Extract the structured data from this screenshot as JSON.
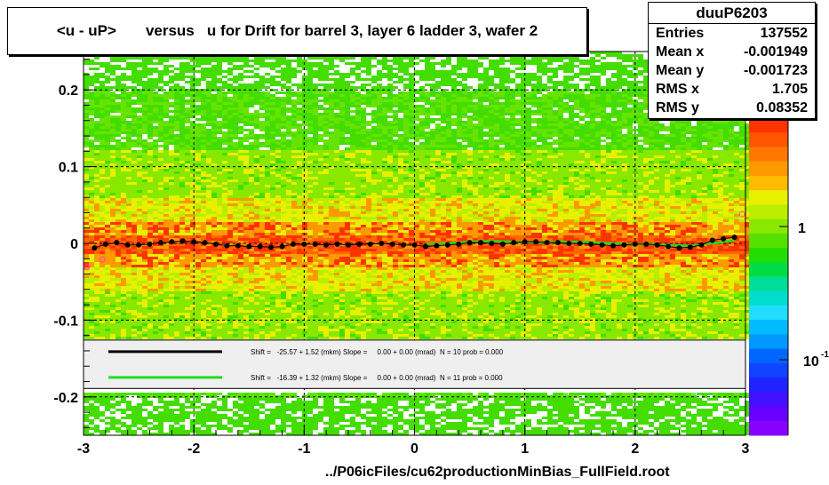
{
  "title": "<u - uP>       versus   u for Drift for barrel 3, layer 6 ladder 3, wafer 2",
  "stats": {
    "name": "duuP6203",
    "rows": [
      {
        "label": "Entries",
        "value": "137552"
      },
      {
        "label": "Mean x",
        "value": "-0.001949"
      },
      {
        "label": "Mean y",
        "value": "-0.001723"
      },
      {
        "label": "RMS x",
        "value": "1.705"
      },
      {
        "label": "RMS y",
        "value": "0.08352"
      }
    ]
  },
  "footer": "../P06icFiles/cu62productionMinBias_FullField.root",
  "colorbar": {
    "labels": [
      "1",
      "10"
    ],
    "label_superscript": "-1"
  },
  "legend": {
    "entries": [
      {
        "color": "#000000",
        "text": "Shift =   -25.57 + 1.52 (mkm) Slope =     0.00 + 0.00 (mrad)  N = 10 prob = 0.000"
      },
      {
        "color": "#22dd22",
        "text": "Shift =   -16.39 + 1.32 (mkm) Slope =     0.00 + 0.00 (mrad)  N = 11 prob = 0.000"
      }
    ]
  },
  "chart_data": {
    "type": "heatmap",
    "xlim": [
      -3,
      3
    ],
    "ylim": [
      -0.25,
      0.25
    ],
    "x_ticks": [
      -3,
      -2,
      -1,
      0,
      1,
      2,
      3
    ],
    "y_ticks": [
      -0.2,
      -0.1,
      0,
      0.1,
      0.2
    ],
    "grid": true,
    "series": [
      {
        "marker": "black-dots",
        "x": [
          -2.9,
          -2.8,
          -2.7,
          -2.6,
          -2.5,
          -2.4,
          -2.3,
          -2.2,
          -2.1,
          -2.0,
          -1.9,
          -1.8,
          -1.7,
          -1.6,
          -1.5,
          -1.4,
          -1.3,
          -1.2,
          -1.1,
          -1.0,
          -0.9,
          -0.8,
          -0.7,
          -0.6,
          -0.5,
          -0.4,
          -0.3,
          -0.2,
          -0.1,
          0.0,
          0.1,
          0.2,
          0.3,
          0.4,
          0.5,
          0.6,
          0.7,
          0.8,
          0.9,
          1.0,
          1.1,
          1.2,
          1.3,
          1.4,
          1.5,
          1.6,
          1.7,
          1.8,
          1.9,
          2.0,
          2.1,
          2.2,
          2.3,
          2.4,
          2.5,
          2.6,
          2.7,
          2.8,
          2.9
        ],
        "y": [
          -0.006,
          -0.001,
          0.001,
          -0.002,
          -0.002,
          -0.001,
          0.001,
          0.002,
          0.003,
          0.002,
          0.001,
          -0.001,
          -0.003,
          -0.003,
          -0.004,
          -0.004,
          -0.005,
          -0.004,
          -0.001,
          -0.001,
          -0.001,
          -0.002,
          -0.001,
          -0.002,
          -0.001,
          -0.001,
          0.0,
          -0.001,
          -0.002,
          -0.002,
          -0.004,
          -0.003,
          -0.002,
          -0.001,
          0.001,
          0.001,
          0.0,
          -0.001,
          0.001,
          0.002,
          0.002,
          0.001,
          0.001,
          0.0,
          0.0,
          -0.001,
          -0.002,
          -0.003,
          -0.002,
          -0.001,
          -0.001,
          -0.002,
          -0.004,
          -0.006,
          -0.005,
          -0.002,
          0.004,
          0.006,
          0.008
        ]
      },
      {
        "marker": "green-line",
        "x": [
          0.1,
          0.3,
          0.5,
          0.7,
          0.9,
          1.1,
          1.3,
          1.5,
          1.7,
          1.9,
          2.1,
          2.3,
          2.5,
          2.7,
          2.9
        ],
        "y": [
          -0.001,
          0.0,
          0.002,
          0.003,
          0.002,
          0.001,
          0.002,
          0.002,
          0.001,
          -0.001,
          -0.001,
          -0.002,
          -0.003,
          0.0,
          0.004
        ]
      },
      {
        "marker": "pink-circles",
        "x": [
          -2.97,
          -2.83,
          2.97
        ],
        "y": [
          -0.031,
          -0.021,
          0.038
        ]
      }
    ],
    "colors": {
      "hot": "#ff3300",
      "warm": "#ff9900",
      "yellow": "#e8f000",
      "green": "#44dd00",
      "cyan": "#22ddff",
      "blue": "#1122ff",
      "violet": "#8800ff"
    }
  }
}
